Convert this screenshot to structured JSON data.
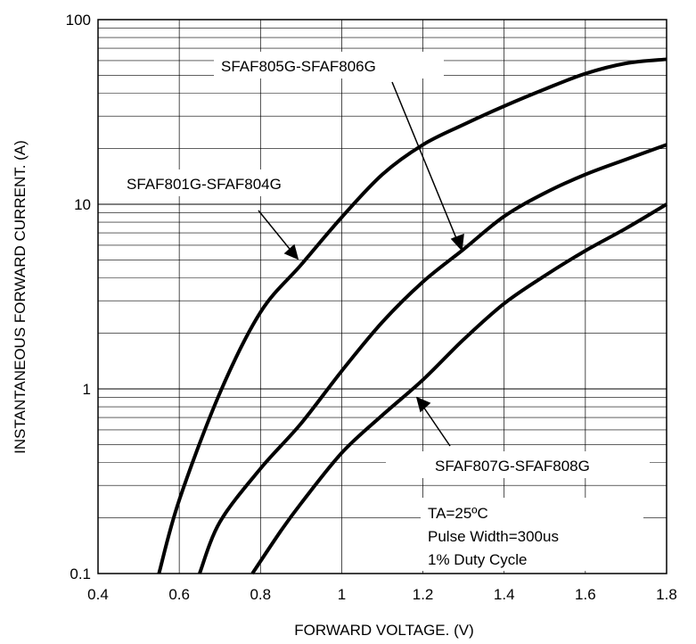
{
  "chart_data": {
    "type": "line",
    "xlabel": "FORWARD VOLTAGE. (V)",
    "ylabel": "INSTANTANEOUS FORWARD CURRENT. (A)",
    "xlim": [
      0.4,
      1.8
    ],
    "ylim": [
      0.1,
      100
    ],
    "yscale": "log",
    "grid": true,
    "x_ticks": [
      "0.4",
      "0.6",
      "0.8",
      "1",
      "1.2",
      "1.4",
      "1.6",
      "1.8"
    ],
    "y_ticks": [
      "0.1",
      "1",
      "10",
      "100"
    ],
    "series": [
      {
        "name": "SFAF801G-SFAF804G",
        "points": [
          [
            0.55,
            0.1
          ],
          [
            0.6,
            0.25
          ],
          [
            0.7,
            0.95
          ],
          [
            0.8,
            2.6
          ],
          [
            0.9,
            4.7
          ],
          [
            1.0,
            8.5
          ],
          [
            1.1,
            14.5
          ],
          [
            1.2,
            21
          ],
          [
            1.3,
            27
          ],
          [
            1.4,
            34
          ],
          [
            1.5,
            42
          ],
          [
            1.6,
            51
          ],
          [
            1.7,
            58
          ],
          [
            1.8,
            61
          ]
        ]
      },
      {
        "name": "SFAF805G-SFAF806G",
        "points": [
          [
            0.65,
            0.1
          ],
          [
            0.7,
            0.19
          ],
          [
            0.8,
            0.37
          ],
          [
            0.9,
            0.65
          ],
          [
            1.0,
            1.25
          ],
          [
            1.1,
            2.3
          ],
          [
            1.2,
            3.8
          ],
          [
            1.3,
            5.7
          ],
          [
            1.4,
            8.6
          ],
          [
            1.5,
            11.5
          ],
          [
            1.6,
            14.5
          ],
          [
            1.7,
            17.5
          ],
          [
            1.8,
            21
          ]
        ]
      },
      {
        "name": "SFAF807G-SFAF808G",
        "points": [
          [
            0.78,
            0.1
          ],
          [
            0.85,
            0.17
          ],
          [
            0.9,
            0.24
          ],
          [
            1.0,
            0.45
          ],
          [
            1.1,
            0.72
          ],
          [
            1.2,
            1.12
          ],
          [
            1.3,
            1.85
          ],
          [
            1.4,
            2.9
          ],
          [
            1.5,
            4.1
          ],
          [
            1.6,
            5.6
          ],
          [
            1.7,
            7.4
          ],
          [
            1.8,
            10.0
          ]
        ]
      }
    ],
    "annotations": {
      "series_label_a": "SFAF805G-SFAF806G",
      "series_label_b": "SFAF801G-SFAF804G",
      "series_label_c": "SFAF807G-SFAF808G",
      "conditions": [
        "TA=25ºC",
        "Pulse Width=300us",
        "1% Duty Cycle"
      ]
    }
  }
}
